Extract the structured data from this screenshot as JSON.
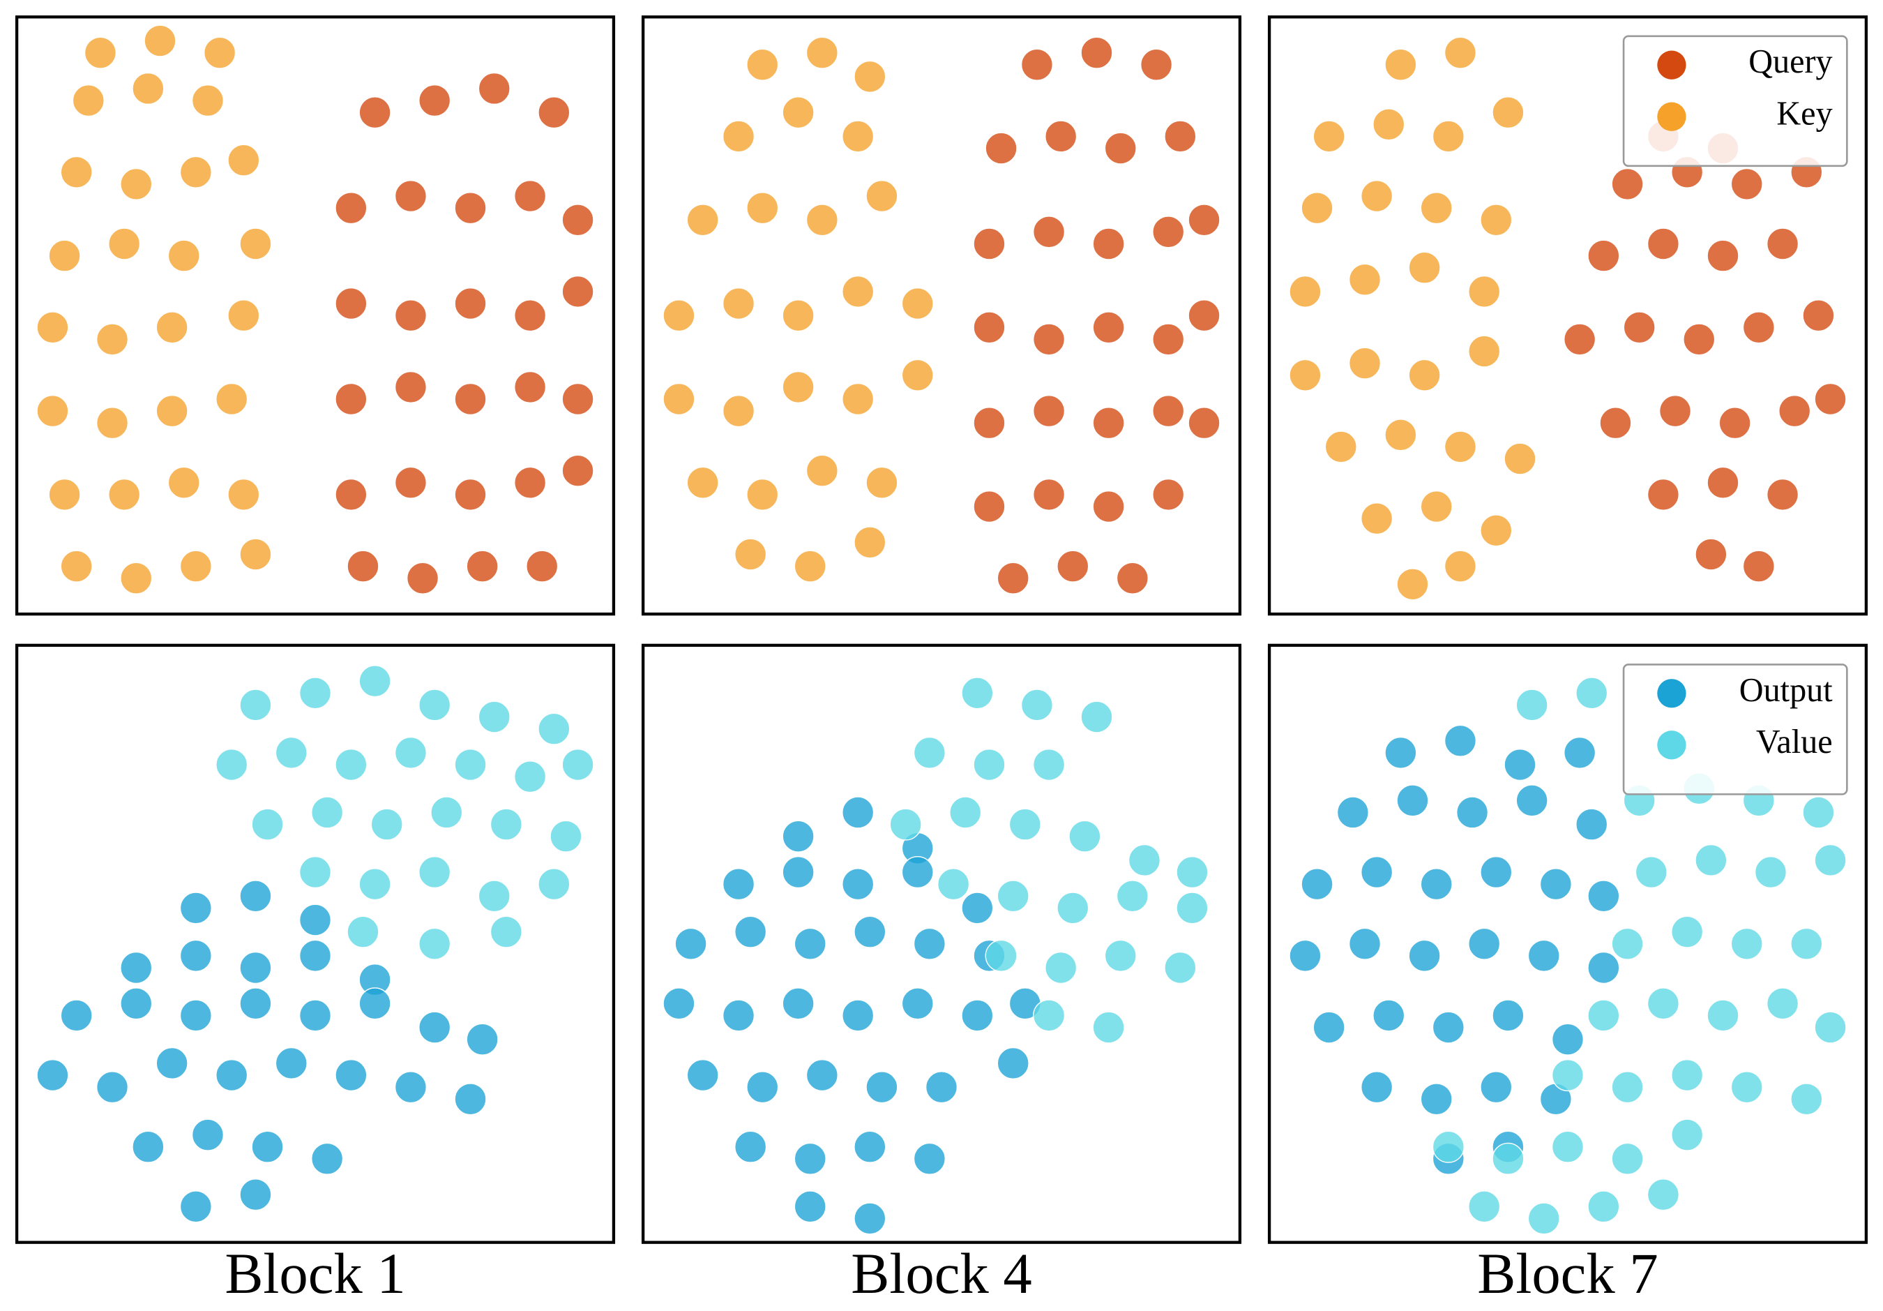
{
  "chart_data": [
    {
      "type": "scatter",
      "xlim": [
        0,
        100
      ],
      "ylim": [
        0,
        100
      ],
      "series": [
        {
          "color": "#d4490f",
          "x": [
            58,
            68,
            78,
            88,
            56,
            66,
            76,
            86,
            94,
            56,
            66,
            76,
            86,
            94,
            56,
            66,
            76,
            86,
            94,
            56,
            66,
            76,
            86,
            94,
            60,
            70,
            80,
            90
          ],
          "y": [
            8,
            6,
            8,
            8,
            20,
            22,
            20,
            22,
            24,
            36,
            38,
            36,
            38,
            36,
            52,
            50,
            52,
            50,
            54,
            68,
            70,
            68,
            70,
            66,
            84,
            86,
            88,
            84
          ]
        },
        {
          "color": "#f5a12a",
          "x": [
            10,
            20,
            30,
            40,
            8,
            18,
            28,
            38,
            6,
            16,
            26,
            36,
            6,
            16,
            26,
            38,
            8,
            18,
            28,
            40,
            10,
            20,
            30,
            38,
            12,
            22,
            32,
            14,
            24,
            34
          ],
          "y": [
            8,
            6,
            8,
            10,
            20,
            20,
            22,
            20,
            34,
            32,
            34,
            36,
            48,
            46,
            48,
            50,
            60,
            62,
            60,
            62,
            74,
            72,
            74,
            76,
            86,
            88,
            86,
            94,
            96,
            94
          ]
        }
      ]
    },
    {
      "type": "scatter",
      "xlim": [
        0,
        100
      ],
      "ylim": [
        0,
        100
      ],
      "series": [
        {
          "color": "#d4490f",
          "x": [
            62,
            72,
            82,
            58,
            68,
            78,
            88,
            58,
            68,
            78,
            88,
            94,
            58,
            68,
            78,
            88,
            94,
            58,
            68,
            78,
            88,
            94,
            60,
            70,
            80,
            90,
            66,
            76,
            86
          ],
          "y": [
            6,
            8,
            6,
            18,
            20,
            18,
            20,
            32,
            34,
            32,
            34,
            32,
            48,
            46,
            48,
            46,
            50,
            62,
            64,
            62,
            64,
            66,
            78,
            80,
            78,
            80,
            92,
            94,
            92
          ]
        },
        {
          "color": "#f5a12a",
          "x": [
            18,
            28,
            38,
            10,
            20,
            30,
            40,
            6,
            16,
            26,
            36,
            46,
            6,
            16,
            26,
            36,
            46,
            10,
            20,
            30,
            40,
            16,
            26,
            36,
            20,
            30,
            38
          ],
          "y": [
            10,
            8,
            12,
            22,
            20,
            24,
            22,
            36,
            34,
            38,
            36,
            40,
            50,
            52,
            50,
            54,
            52,
            66,
            68,
            66,
            70,
            80,
            84,
            80,
            92,
            94,
            90
          ]
        }
      ]
    },
    {
      "type": "scatter",
      "xlim": [
        0,
        100
      ],
      "ylim": [
        0,
        100
      ],
      "legend": "upper right",
      "series": [
        {
          "name": "Query",
          "color": "#d4490f",
          "x": [
            74,
            82,
            66,
            76,
            86,
            58,
            68,
            78,
            88,
            94,
            52,
            62,
            72,
            82,
            92,
            56,
            66,
            76,
            86,
            60,
            70,
            80,
            90,
            66,
            76
          ],
          "y": [
            10,
            8,
            20,
            22,
            20,
            32,
            34,
            32,
            34,
            36,
            46,
            48,
            46,
            48,
            50,
            60,
            62,
            60,
            62,
            72,
            74,
            72,
            74,
            80,
            78
          ]
        },
        {
          "name": "Key",
          "color": "#f5a12a",
          "x": [
            24,
            32,
            18,
            28,
            38,
            12,
            22,
            32,
            42,
            6,
            16,
            26,
            36,
            6,
            16,
            26,
            36,
            8,
            18,
            28,
            38,
            10,
            20,
            30,
            40,
            22,
            32
          ],
          "y": [
            5,
            8,
            16,
            18,
            14,
            28,
            30,
            28,
            26,
            40,
            42,
            40,
            44,
            54,
            56,
            58,
            54,
            68,
            70,
            68,
            66,
            80,
            82,
            80,
            84,
            92,
            94
          ]
        }
      ]
    },
    {
      "type": "scatter",
      "xlim": [
        0,
        100
      ],
      "ylim": [
        0,
        100
      ],
      "xlabel": "Block 1",
      "series": [
        {
          "color": "#1ba3d6",
          "x": [
            30,
            40,
            50,
            20,
            30,
            40,
            50,
            60,
            10,
            20,
            30,
            40,
            50,
            60,
            70,
            78,
            6,
            16,
            26,
            36,
            46,
            56,
            66,
            76,
            22,
            32,
            42,
            52,
            30,
            40
          ],
          "y": [
            56,
            58,
            54,
            46,
            48,
            46,
            48,
            44,
            38,
            40,
            38,
            40,
            38,
            40,
            36,
            34,
            28,
            26,
            30,
            28,
            30,
            28,
            26,
            24,
            16,
            18,
            16,
            14,
            6,
            8
          ]
        },
        {
          "color": "#5ed8e6",
          "x": [
            40,
            50,
            60,
            70,
            80,
            90,
            36,
            46,
            56,
            66,
            76,
            86,
            94,
            42,
            52,
            62,
            72,
            82,
            92,
            50,
            60,
            70,
            80,
            90,
            58,
            70,
            82
          ],
          "y": [
            90,
            92,
            94,
            90,
            88,
            86,
            80,
            82,
            80,
            82,
            80,
            78,
            80,
            70,
            72,
            70,
            72,
            70,
            68,
            62,
            60,
            62,
            58,
            60,
            52,
            50,
            52
          ]
        }
      ]
    },
    {
      "type": "scatter",
      "xlim": [
        0,
        100
      ],
      "ylim": [
        0,
        100
      ],
      "xlabel": "Block 4",
      "series": [
        {
          "color": "#1ba3d6",
          "x": [
            26,
            36,
            46,
            16,
            26,
            36,
            46,
            56,
            8,
            18,
            28,
            38,
            48,
            58,
            64,
            6,
            16,
            26,
            36,
            46,
            56,
            62,
            10,
            20,
            30,
            40,
            50,
            18,
            28,
            38,
            48,
            28,
            38
          ],
          "y": [
            68,
            72,
            66,
            60,
            62,
            60,
            62,
            56,
            50,
            52,
            50,
            52,
            50,
            48,
            40,
            40,
            38,
            40,
            38,
            40,
            38,
            30,
            28,
            26,
            28,
            26,
            26,
            16,
            14,
            16,
            14,
            6,
            4
          ]
        },
        {
          "color": "#5ed8e6",
          "x": [
            56,
            66,
            76,
            48,
            58,
            68,
            44,
            54,
            64,
            74,
            84,
            92,
            52,
            62,
            72,
            82,
            92,
            60,
            70,
            80,
            90,
            68,
            78
          ],
          "y": [
            92,
            90,
            88,
            82,
            80,
            80,
            70,
            72,
            70,
            68,
            64,
            62,
            60,
            58,
            56,
            58,
            56,
            48,
            46,
            48,
            46,
            38,
            36
          ]
        }
      ]
    },
    {
      "type": "scatter",
      "xlim": [
        0,
        100
      ],
      "ylim": [
        0,
        100
      ],
      "xlabel": "Block 7",
      "legend": "upper right",
      "series": [
        {
          "name": "Output",
          "color": "#1ba3d6",
          "x": [
            22,
            32,
            42,
            52,
            14,
            24,
            34,
            44,
            54,
            8,
            18,
            28,
            38,
            48,
            56,
            6,
            16,
            26,
            36,
            46,
            56,
            10,
            20,
            30,
            40,
            50,
            18,
            28,
            38,
            48,
            30,
            40
          ],
          "y": [
            82,
            84,
            80,
            82,
            72,
            74,
            72,
            74,
            70,
            60,
            62,
            60,
            62,
            60,
            58,
            48,
            50,
            48,
            50,
            48,
            46,
            36,
            38,
            36,
            38,
            34,
            26,
            24,
            26,
            24,
            14,
            16
          ]
        },
        {
          "name": "Value",
          "color": "#5ed8e6",
          "x": [
            44,
            54,
            62,
            72,
            82,
            92,
            64,
            74,
            84,
            94,
            60,
            70,
            80,
            90,
            56,
            66,
            76,
            86,
            94,
            50,
            60,
            70,
            80,
            90,
            30,
            40,
            50,
            60,
            70,
            36,
            46,
            56,
            66
          ],
          "y": [
            90,
            92,
            74,
            76,
            74,
            72,
            62,
            64,
            62,
            64,
            50,
            52,
            50,
            50,
            38,
            40,
            38,
            40,
            36,
            28,
            26,
            28,
            26,
            24,
            16,
            14,
            16,
            14,
            18,
            6,
            4,
            6,
            8
          ]
        }
      ]
    }
  ]
}
